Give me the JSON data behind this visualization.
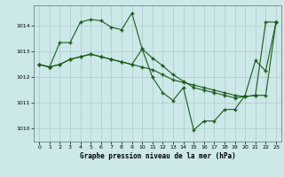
{
  "title": "Graphe pression niveau de la mer (hPa)",
  "bg_color": "#cce8e8",
  "grid_color": "#aacccc",
  "line_color": "#1a5c1a",
  "xlim": [
    -0.5,
    23.5
  ],
  "ylim": [
    1009.5,
    1014.8
  ],
  "yticks": [
    1010,
    1011,
    1012,
    1013,
    1014
  ],
  "xticks": [
    0,
    1,
    2,
    3,
    4,
    5,
    6,
    7,
    8,
    9,
    10,
    11,
    12,
    13,
    14,
    15,
    16,
    17,
    18,
    19,
    20,
    21,
    22,
    23
  ],
  "line1_x": [
    0,
    1,
    2,
    3,
    4,
    5,
    6,
    7,
    8,
    9,
    10,
    11,
    12,
    13,
    14,
    15,
    16,
    17,
    18,
    19,
    20,
    21,
    22,
    23
  ],
  "line1_y": [
    1012.5,
    1012.4,
    1013.35,
    1013.35,
    1014.15,
    1014.25,
    1014.2,
    1013.95,
    1013.85,
    1014.5,
    1013.1,
    1012.75,
    1012.45,
    1012.1,
    1011.85,
    1011.6,
    1011.5,
    1011.4,
    1011.3,
    1011.2,
    1011.25,
    1011.3,
    1014.15,
    1014.15
  ],
  "line2_x": [
    0,
    1,
    2,
    3,
    4,
    5,
    6,
    7,
    8,
    9,
    10,
    11,
    12,
    13,
    14,
    15,
    16,
    17,
    18,
    19,
    20,
    21,
    22,
    23
  ],
  "line2_y": [
    1012.5,
    1012.4,
    1012.5,
    1012.7,
    1012.8,
    1012.9,
    1012.8,
    1012.7,
    1012.6,
    1012.5,
    1012.4,
    1012.3,
    1012.1,
    1011.9,
    1011.8,
    1011.7,
    1011.6,
    1011.5,
    1011.4,
    1011.3,
    1011.25,
    1011.3,
    1011.3,
    1014.15
  ],
  "line3_x": [
    0,
    1,
    2,
    3,
    4,
    5,
    6,
    7,
    8,
    9,
    10,
    11,
    12,
    13,
    14,
    15,
    16,
    17,
    18,
    19,
    20,
    21,
    22,
    23
  ],
  "line3_y": [
    1012.5,
    1012.4,
    1012.5,
    1012.7,
    1012.8,
    1012.9,
    1012.8,
    1012.7,
    1012.6,
    1012.5,
    1013.1,
    1012.0,
    1011.4,
    1011.1,
    1011.6,
    1009.95,
    1010.3,
    1010.3,
    1010.75,
    1010.75,
    1011.3,
    1012.65,
    1012.25,
    1014.15
  ]
}
